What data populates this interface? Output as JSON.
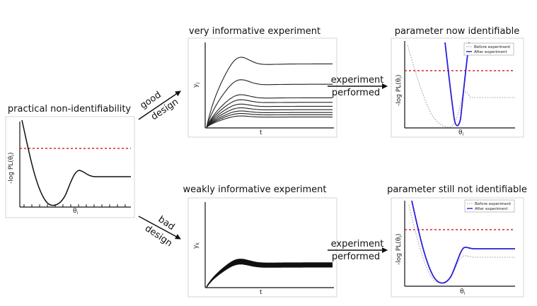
{
  "titles": {
    "left": "practical non-identifiability",
    "top_mid": "very informative experiment",
    "top_right": "parameter now identifiable",
    "bottom_mid": "weakly informative experiment",
    "bottom_right": "parameter still not identifiable"
  },
  "arrows": {
    "good_line1": "good",
    "good_line2": "design",
    "bad_line1": "bad",
    "bad_line2": "design",
    "exp_top_line1": "experiment",
    "exp_top_line2": "performed",
    "exp_bottom_line1": "experiment",
    "exp_bottom_line2": "performed"
  },
  "axis_labels": {
    "pl_main": "-log PL(θ",
    "pl_sub": "i",
    "pl_close": ")",
    "theta_main": "θ",
    "theta_sub": "i",
    "t": "t",
    "yj_main": "y",
    "yj_sub": "j",
    "yk_main": "y",
    "yk_sub": "k"
  },
  "legend": {
    "before": "Before experiment",
    "after": "After experiment"
  },
  "colors": {
    "threshold": "#d62728",
    "after_curve": "#2a1fd6",
    "before_curve": "#9a9a9a",
    "curve": "#111111"
  }
}
